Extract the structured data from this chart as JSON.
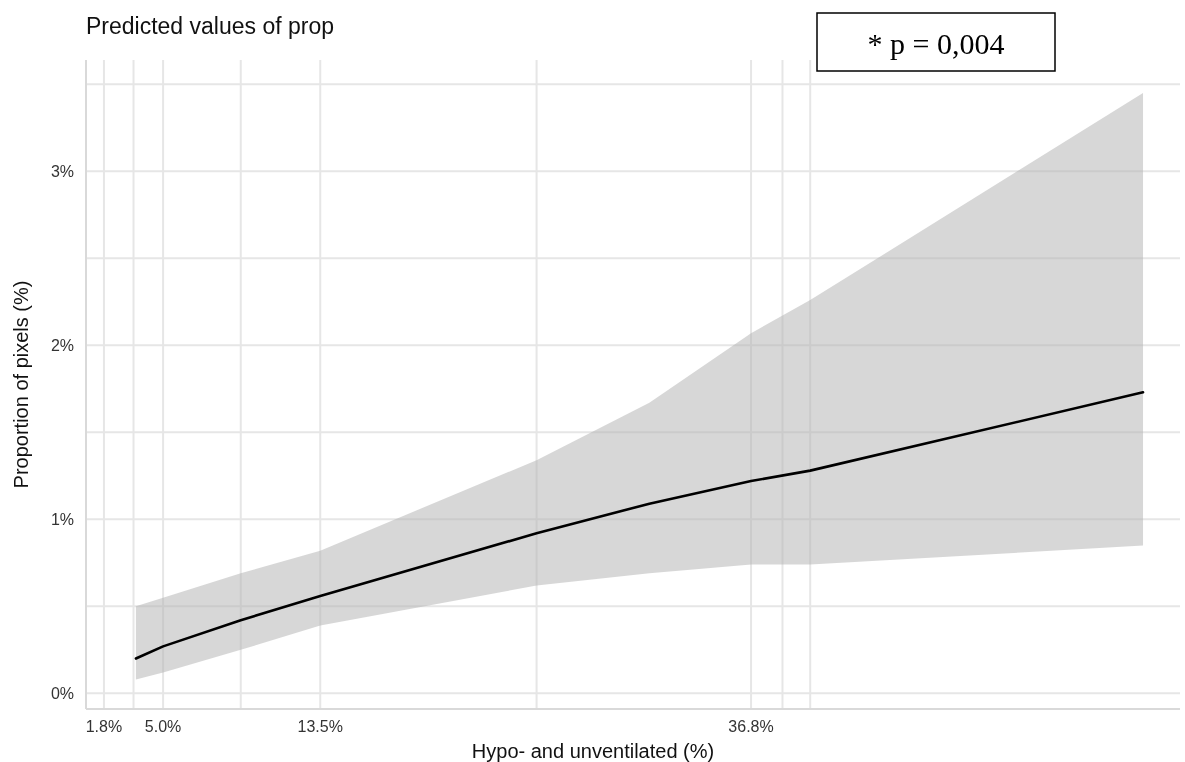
{
  "chart_data": {
    "type": "line",
    "title": "Predicted values of prop",
    "xlabel": "Hypo- and unventilated (%)",
    "ylabel": "Proportion of pixels (%)",
    "annotations": [
      "* p = 0,004"
    ],
    "series": [
      {
        "color": "#000000",
        "x": [
          3.53,
          5.0,
          9.2,
          13.5,
          25.2,
          31.3,
          36.8,
          40.0,
          58.0
        ],
        "values": [
          0.2,
          0.27,
          0.42,
          0.56,
          0.92,
          1.09,
          1.22,
          1.28,
          1.73
        ],
        "lower": [
          0.08,
          0.12,
          0.25,
          0.39,
          0.62,
          0.69,
          0.74,
          0.74,
          0.85
        ],
        "upper": [
          0.5,
          0.55,
          0.69,
          0.82,
          1.34,
          1.67,
          2.07,
          2.26,
          3.45
        ]
      }
    ],
    "xlim": [
      0.83,
      60.0
    ],
    "ylim": [
      -0.09,
      3.64
    ],
    "xticks": [
      {
        "value": 1.8,
        "label": "1.8%"
      },
      {
        "value": 3.4,
        "label": null
      },
      {
        "value": 5.0,
        "label": "5.0%"
      },
      {
        "value": 9.2,
        "label": null
      },
      {
        "value": 13.5,
        "label": "13.5%"
      },
      {
        "value": 25.2,
        "label": null
      },
      {
        "value": 36.8,
        "label": "36.8%"
      },
      {
        "value": 38.5,
        "label": null
      },
      {
        "value": 40.0,
        "label": null
      }
    ],
    "yticks": [
      {
        "value": 0,
        "label": "0%"
      },
      {
        "value": 0.5,
        "label": null
      },
      {
        "value": 1,
        "label": "1%"
      },
      {
        "value": 1.5,
        "label": null
      },
      {
        "value": 2,
        "label": "2%"
      },
      {
        "value": 2.5,
        "label": null
      },
      {
        "value": 3,
        "label": "3%"
      },
      {
        "value": 3.5,
        "label": null
      }
    ],
    "grid": true,
    "line_style": "solid",
    "marker": "none"
  }
}
